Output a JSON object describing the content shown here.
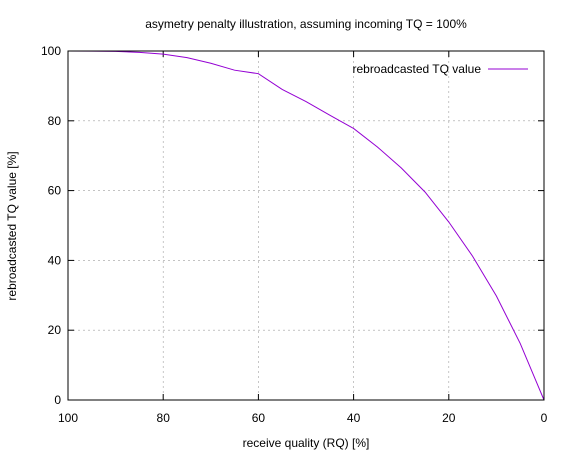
{
  "chart_data": {
    "type": "line",
    "title": "asymetry penalty illustration, assuming incoming TQ = 100%",
    "xlabel": "receive quality (RQ) [%]",
    "ylabel": "rebroadcasted TQ value [%]",
    "xlim": [
      100,
      0
    ],
    "ylim": [
      0,
      100
    ],
    "x_reversed": true,
    "xticks": [
      100,
      80,
      60,
      40,
      20,
      0
    ],
    "yticks": [
      0,
      20,
      40,
      60,
      80,
      100
    ],
    "grid": true,
    "legend_position": "top-right",
    "series": [
      {
        "name": "rebroadcasted TQ value",
        "color": "#9400d3",
        "x": [
          100,
          95,
          90,
          85,
          80,
          75,
          70,
          65,
          60,
          55,
          50,
          45,
          40,
          35,
          30,
          25,
          20,
          15,
          10,
          5,
          0
        ],
        "y": [
          100,
          99.98,
          99.9,
          99.6,
          99.1,
          98.1,
          96.5,
          94.5,
          93.5,
          89.0,
          85.5,
          81.6,
          77.8,
          72.5,
          66.5,
          59.6,
          51.0,
          41.2,
          29.8,
          16.2,
          0
        ]
      }
    ]
  }
}
